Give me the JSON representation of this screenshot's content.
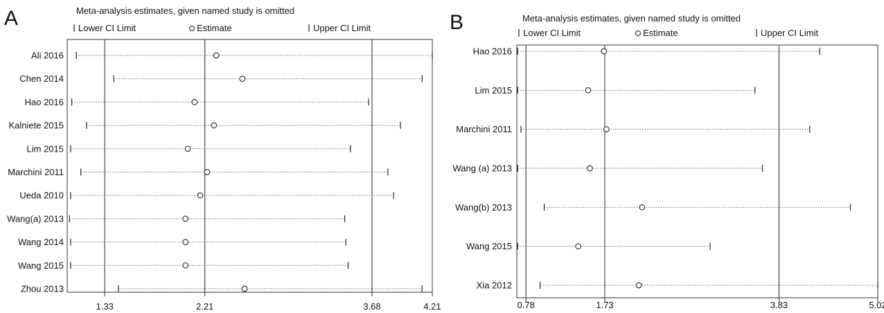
{
  "chart_data": [
    {
      "panel": "A",
      "type": "scatter",
      "title": "Meta-analysis estimates, given named study is omitted",
      "legend": [
        "Lower CI Limit",
        "Estimate",
        "Upper CI Limit"
      ],
      "legend_symbols": [
        "|",
        "o",
        "|"
      ],
      "xlim": [
        1.0,
        4.21
      ],
      "reference_lines": [
        1.33,
        2.21,
        3.68
      ],
      "xticks": [
        "1.33",
        "2.21",
        "3.68",
        "4.21"
      ],
      "tick_values": [
        1.33,
        2.21,
        3.68,
        4.21
      ],
      "categories": [
        "Ali 2016",
        "Chen 2014",
        "Hao 2016",
        "Kalniete 2015",
        "Lim 2015",
        "Marchini 2011",
        "Ueda 2010",
        "Wang(a) 2013",
        "Wang 2014",
        "Wang 2015",
        "Zhou 2013"
      ],
      "series": [
        {
          "name": "Lower CI Limit",
          "values": [
            1.08,
            1.41,
            1.04,
            1.17,
            1.03,
            1.12,
            1.03,
            1.02,
            1.03,
            1.03,
            1.45
          ]
        },
        {
          "name": "Estimate",
          "values": [
            2.31,
            2.54,
            2.12,
            2.29,
            2.06,
            2.23,
            2.17,
            2.04,
            2.04,
            2.04,
            2.56
          ]
        },
        {
          "name": "Upper CI Limit",
          "values": [
            4.21,
            4.12,
            3.65,
            3.93,
            3.49,
            3.82,
            3.87,
            3.44,
            3.45,
            3.47,
            4.12
          ]
        }
      ]
    },
    {
      "panel": "B",
      "type": "scatter",
      "title": "Meta-analysis estimates, given named study is omitted",
      "legend": [
        "Lower CI Limit",
        "Estimate",
        "Upper CI Limit"
      ],
      "legend_symbols": [
        "|",
        "o",
        "|"
      ],
      "xlim": [
        0.67,
        5.02
      ],
      "reference_lines": [
        0.78,
        1.73,
        3.83
      ],
      "xticks": [
        "0.78",
        "1.73",
        "3.83",
        "5.02"
      ],
      "tick_values": [
        0.78,
        1.73,
        3.83,
        5.02
      ],
      "categories": [
        "Hao 2016",
        "Lim 2015",
        "Marchini 2011",
        "Wang (a) 2013",
        "Wang(b) 2013",
        "Wang 2015",
        "Xia 2012"
      ],
      "series": [
        {
          "name": "Lower CI Limit",
          "values": [
            0.68,
            0.68,
            0.72,
            0.68,
            1.0,
            0.68,
            0.95
          ]
        },
        {
          "name": "Estimate",
          "values": [
            1.72,
            1.53,
            1.75,
            1.55,
            2.18,
            1.41,
            2.14
          ]
        },
        {
          "name": "Upper CI Limit",
          "values": [
            4.32,
            3.54,
            4.2,
            3.63,
            4.69,
            3.0,
            5.02
          ]
        }
      ]
    }
  ]
}
